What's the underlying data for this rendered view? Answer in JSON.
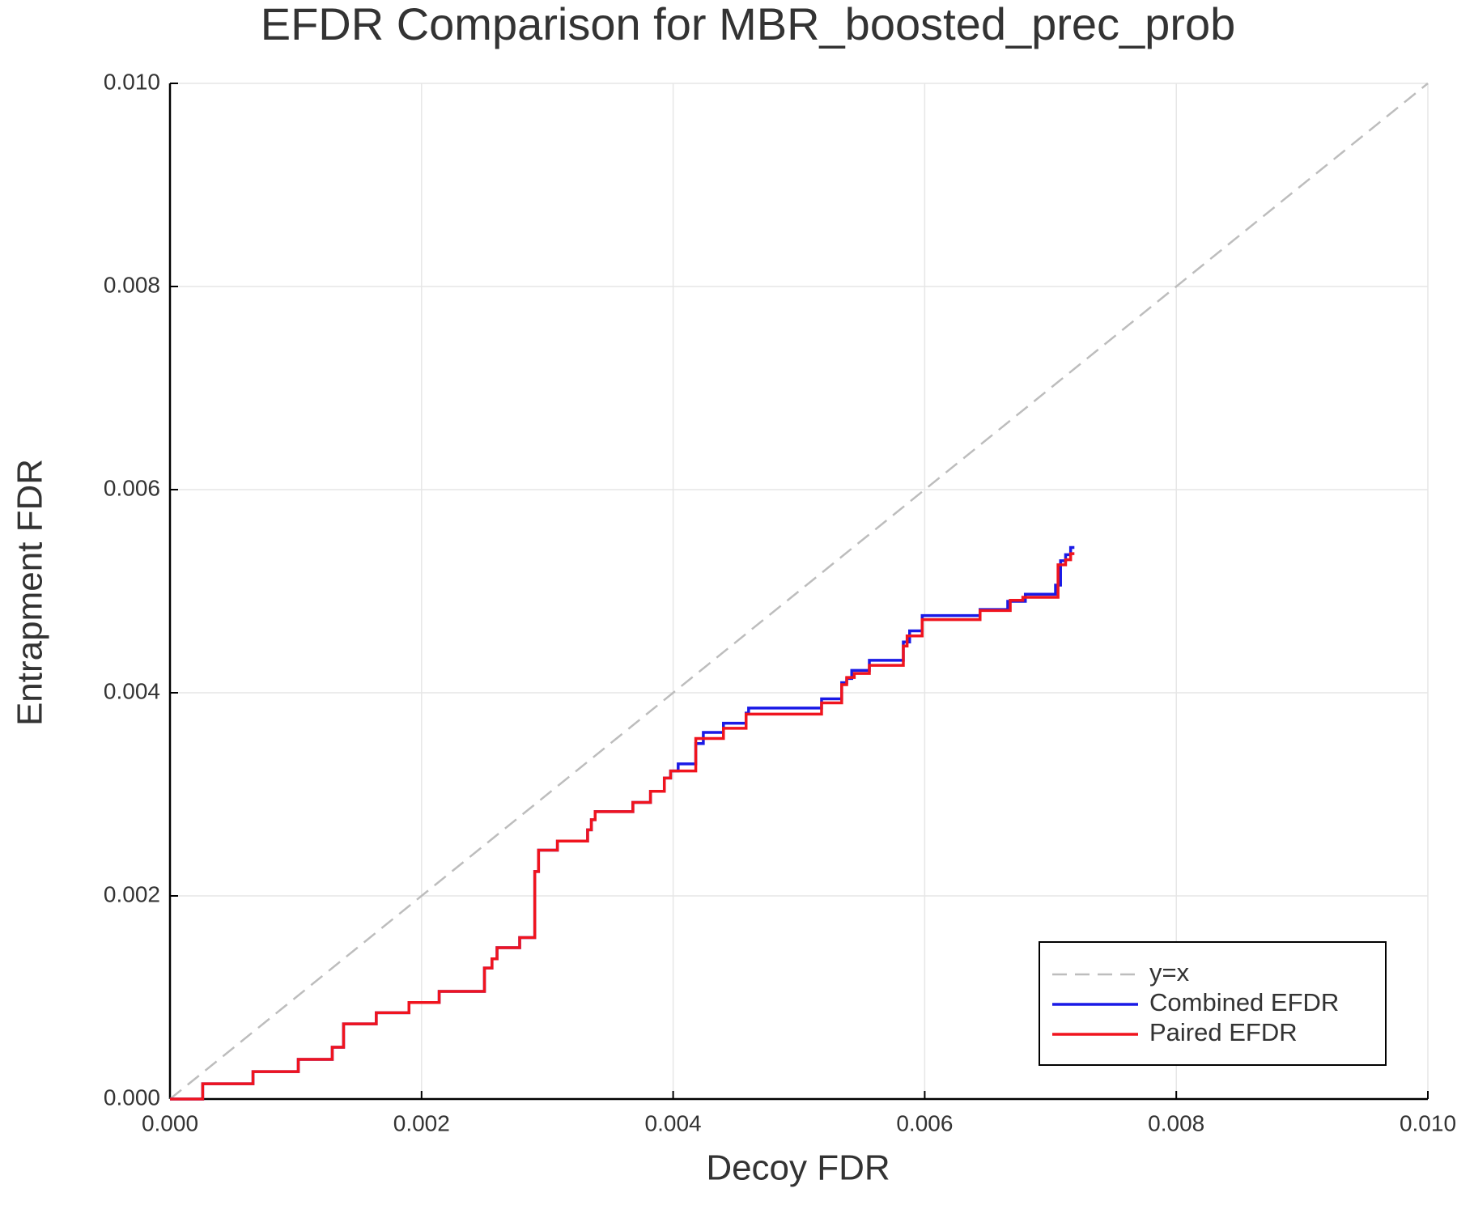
{
  "chart_data": {
    "type": "line",
    "title": "EFDR Comparison for MBR_boosted_prec_prob",
    "x_label": "Decoy FDR",
    "y_label": "Entrapment FDR",
    "xlim": [
      0,
      0.01
    ],
    "ylim": [
      0,
      0.01
    ],
    "xticks": [
      {
        "value": 0,
        "label": "0.000"
      },
      {
        "value": 0.002,
        "label": "0.002"
      },
      {
        "value": 0.004,
        "label": "0.004"
      },
      {
        "value": 0.006,
        "label": "0.006"
      },
      {
        "value": 0.008,
        "label": "0.008"
      },
      {
        "value": 0.01,
        "label": "0.010"
      }
    ],
    "yticks": [
      {
        "value": 0,
        "label": "0.000"
      },
      {
        "value": 0.002,
        "label": "0.002"
      },
      {
        "value": 0.004,
        "label": "0.004"
      },
      {
        "value": 0.006,
        "label": "0.006"
      },
      {
        "value": 0.008,
        "label": "0.008"
      },
      {
        "value": 0.01,
        "label": "0.010"
      }
    ],
    "grid": true,
    "legend": "bottom-right",
    "series": [
      {
        "name": "y=x",
        "color": "#bdbdbd",
        "dash": true,
        "x": [
          0,
          0.01
        ],
        "values": [
          0,
          0.01
        ]
      },
      {
        "name": "Combined EFDR",
        "color": "#1a1ae6",
        "x": [
          0,
          0.00026,
          0.00026,
          0.00066,
          0.00066,
          0.00102,
          0.00102,
          0.00129,
          0.00129,
          0.00138,
          0.00138,
          0.00164,
          0.00164,
          0.0019,
          0.0019,
          0.00214,
          0.00214,
          0.0025,
          0.0025,
          0.00256,
          0.00256,
          0.0026,
          0.0026,
          0.00278,
          0.00278,
          0.0029,
          0.0029,
          0.00293,
          0.00293,
          0.00308,
          0.00308,
          0.00332,
          0.00332,
          0.00335,
          0.00335,
          0.00338,
          0.00338,
          0.00368,
          0.00368,
          0.00382,
          0.00382,
          0.00393,
          0.00393,
          0.00398,
          0.00398,
          0.00404,
          0.00404,
          0.00418,
          0.00418,
          0.00424,
          0.00424,
          0.0044,
          0.0044,
          0.00458,
          0.00458,
          0.0046,
          0.0046,
          0.00518,
          0.00518,
          0.00534,
          0.00534,
          0.00538,
          0.00538,
          0.00542,
          0.00542,
          0.00556,
          0.00556,
          0.00583,
          0.00583,
          0.00588,
          0.00588,
          0.00598,
          0.00598,
          0.00644,
          0.00644,
          0.00666,
          0.00666,
          0.0068,
          0.0068,
          0.00704,
          0.00704,
          0.00708,
          0.00708,
          0.00712,
          0.00712,
          0.00716,
          0.00716,
          0.00719
        ],
        "values": [
          0,
          0,
          0.00015,
          0.00015,
          0.00027,
          0.00027,
          0.00039,
          0.00039,
          0.00051,
          0.00051,
          0.00074,
          0.00074,
          0.00085,
          0.00085,
          0.00095,
          0.00095,
          0.00106,
          0.00106,
          0.00129,
          0.00129,
          0.00138,
          0.00138,
          0.00149,
          0.00149,
          0.00159,
          0.00159,
          0.00224,
          0.00224,
          0.00245,
          0.00245,
          0.00254,
          0.00254,
          0.00265,
          0.00265,
          0.00275,
          0.00275,
          0.00283,
          0.00283,
          0.00292,
          0.00292,
          0.00303,
          0.00303,
          0.00316,
          0.00316,
          0.00323,
          0.00323,
          0.0033,
          0.0033,
          0.0035,
          0.0035,
          0.00361,
          0.00361,
          0.0037,
          0.0037,
          0.0038,
          0.0038,
          0.00385,
          0.00385,
          0.00394,
          0.00394,
          0.0041,
          0.0041,
          0.00414,
          0.00414,
          0.00422,
          0.00422,
          0.00432,
          0.00432,
          0.0045,
          0.0045,
          0.00461,
          0.00461,
          0.00476,
          0.00476,
          0.00482,
          0.00482,
          0.0049,
          0.0049,
          0.00497,
          0.00497,
          0.00506,
          0.00506,
          0.0053,
          0.0053,
          0.00536,
          0.00536,
          0.00543,
          0.00543
        ]
      },
      {
        "name": "Paired EFDR",
        "color": "#f0141e",
        "x": [
          0,
          0.00026,
          0.00026,
          0.00066,
          0.00066,
          0.00102,
          0.00102,
          0.00129,
          0.00129,
          0.00138,
          0.00138,
          0.00164,
          0.00164,
          0.0019,
          0.0019,
          0.00214,
          0.00214,
          0.0025,
          0.0025,
          0.00256,
          0.00256,
          0.0026,
          0.0026,
          0.00278,
          0.00278,
          0.0029,
          0.0029,
          0.00293,
          0.00293,
          0.00308,
          0.00308,
          0.00332,
          0.00332,
          0.00335,
          0.00335,
          0.00338,
          0.00338,
          0.00368,
          0.00368,
          0.00382,
          0.00382,
          0.00393,
          0.00393,
          0.00398,
          0.00398,
          0.00418,
          0.00418,
          0.0044,
          0.0044,
          0.00458,
          0.00458,
          0.00518,
          0.00518,
          0.00534,
          0.00534,
          0.00538,
          0.00538,
          0.00544,
          0.00544,
          0.00556,
          0.00556,
          0.00583,
          0.00583,
          0.00586,
          0.00586,
          0.00598,
          0.00598,
          0.00644,
          0.00644,
          0.00668,
          0.00668,
          0.00678,
          0.00678,
          0.00706,
          0.00706,
          0.00712,
          0.00712,
          0.00716,
          0.00716,
          0.00719
        ],
        "values": [
          0,
          0,
          0.00015,
          0.00015,
          0.00027,
          0.00027,
          0.00039,
          0.00039,
          0.00051,
          0.00051,
          0.00074,
          0.00074,
          0.00085,
          0.00085,
          0.00095,
          0.00095,
          0.00106,
          0.00106,
          0.00129,
          0.00129,
          0.00138,
          0.00138,
          0.00149,
          0.00149,
          0.00159,
          0.00159,
          0.00224,
          0.00224,
          0.00245,
          0.00245,
          0.00254,
          0.00254,
          0.00265,
          0.00265,
          0.00275,
          0.00275,
          0.00283,
          0.00283,
          0.00292,
          0.00292,
          0.00303,
          0.00303,
          0.00316,
          0.00316,
          0.00323,
          0.00323,
          0.00355,
          0.00355,
          0.00365,
          0.00365,
          0.00379,
          0.00379,
          0.0039,
          0.0039,
          0.00408,
          0.00408,
          0.00415,
          0.00415,
          0.00419,
          0.00419,
          0.00427,
          0.00427,
          0.00446,
          0.00446,
          0.00456,
          0.00456,
          0.00472,
          0.00472,
          0.00481,
          0.00481,
          0.00491,
          0.00491,
          0.00494,
          0.00494,
          0.00526,
          0.00526,
          0.00531,
          0.00531,
          0.00537,
          0.00537
        ]
      }
    ]
  }
}
